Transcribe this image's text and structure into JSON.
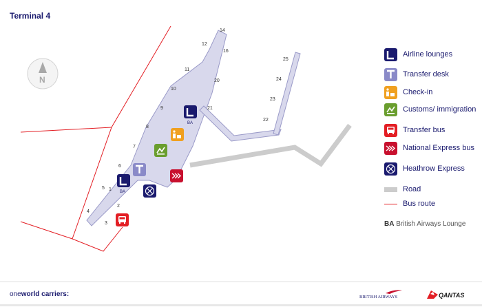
{
  "title": "Terminal 4",
  "gates": [
    {
      "label": "1"
    },
    {
      "label": "2"
    },
    {
      "label": "3"
    },
    {
      "label": "4"
    },
    {
      "label": "5"
    },
    {
      "label": "6"
    },
    {
      "label": "7"
    },
    {
      "label": "8"
    },
    {
      "label": "9"
    },
    {
      "label": "10"
    },
    {
      "label": "11"
    },
    {
      "label": "12"
    },
    {
      "label": "14"
    },
    {
      "label": "16"
    },
    {
      "label": "20"
    },
    {
      "label": "21"
    },
    {
      "label": "22"
    },
    {
      "label": "23"
    },
    {
      "label": "24"
    },
    {
      "label": "25"
    }
  ],
  "map_icons": {
    "ba_lounge_label": "BA",
    "ba_lounge_north_label": "BA"
  },
  "legend": {
    "items": [
      {
        "key": "lounge",
        "label": "Airline lounges",
        "icon": "lounge-icon",
        "glyph": "L",
        "color": "#1a1a6e"
      },
      {
        "key": "transfer",
        "label": "Transfer desk",
        "icon": "transfer-desk-icon",
        "glyph": "T",
        "color": "#8a8ac8"
      },
      {
        "key": "checkin",
        "label": "Check-in",
        "icon": "check-in-icon",
        "color": "#f0a020"
      },
      {
        "key": "customs",
        "label": "Customs/ immigration",
        "icon": "customs-icon",
        "color": "#6a9e2e"
      },
      {
        "key": "bus",
        "label": "Transfer bus",
        "icon": "transfer-bus-icon",
        "color": "#e31e24"
      },
      {
        "key": "nexpress",
        "label": "National Express bus",
        "icon": "national-express-icon",
        "color": "#c8102e"
      },
      {
        "key": "hexpress",
        "label": "Heathrow Express",
        "icon": "heathrow-express-icon",
        "color": "#1a1a6e"
      },
      {
        "key": "road",
        "label": "Road",
        "color": "#cccccc"
      },
      {
        "key": "busroute",
        "label": "Bus route",
        "color": "#e31e24"
      }
    ],
    "ba_abbrev": "BA",
    "ba_note": "British Airways Lounge"
  },
  "compass": {
    "letter": "N"
  },
  "footer": {
    "one": "one",
    "world": "world",
    "rest": " carriers:",
    "ba_logo_text": "BRITISH AIRWAYS",
    "qantas_logo_text": "QANTAS"
  }
}
